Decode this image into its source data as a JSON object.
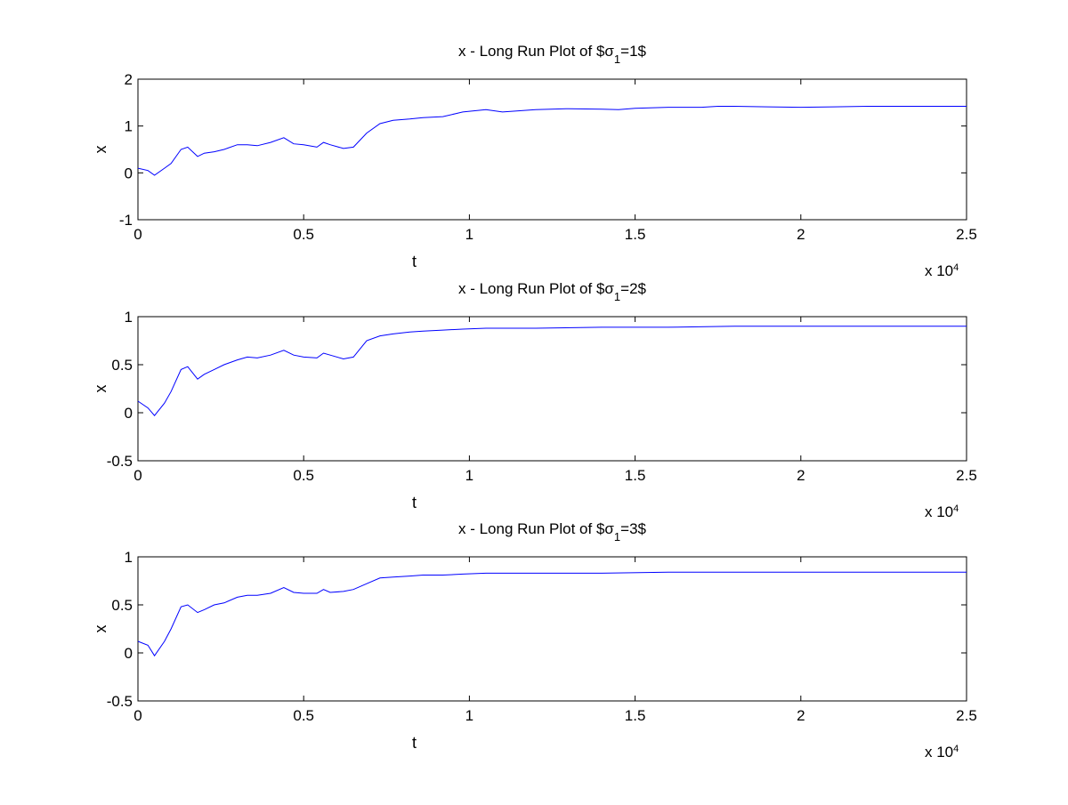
{
  "figure": {
    "background": "#ffffff",
    "line_color": "#0000ff"
  },
  "chart_data": [
    {
      "type": "line",
      "title_prefix": "x - Long Run Plot of $σ",
      "title_subscript": "1",
      "title_suffix": "=1$",
      "xlabel": "t",
      "ylabel": "x",
      "xlim": [
        0,
        25000
      ],
      "ylim": [
        -1,
        2
      ],
      "xticks": [
        0,
        5000,
        10000,
        15000,
        20000,
        25000
      ],
      "xtick_labels": [
        "0",
        "0.5",
        "1",
        "1.5",
        "2",
        "2.5"
      ],
      "yticks": [
        -1,
        0,
        1,
        2
      ],
      "ytick_labels": [
        "-1",
        "0",
        "1",
        "2"
      ],
      "x_multiplier_base": "x 10",
      "x_multiplier_exp": "4",
      "grid": false,
      "series": [
        {
          "color": "#0000ff",
          "x": [
            0,
            300,
            500,
            800,
            1000,
            1300,
            1500,
            1800,
            2000,
            2300,
            2600,
            3000,
            3300,
            3600,
            4000,
            4400,
            4700,
            5000,
            5400,
            5600,
            5800,
            6200,
            6500,
            6900,
            7300,
            7700,
            8200,
            8600,
            9200,
            9800,
            10500,
            11000,
            12000,
            13000,
            14000,
            14500,
            15000,
            16000,
            17000,
            17500,
            18000,
            19000,
            20000,
            21000,
            22000,
            23000,
            24000,
            25000
          ],
          "y": [
            0.1,
            0.05,
            -0.05,
            0.1,
            0.2,
            0.5,
            0.55,
            0.35,
            0.42,
            0.45,
            0.5,
            0.6,
            0.6,
            0.58,
            0.65,
            0.75,
            0.62,
            0.6,
            0.55,
            0.65,
            0.6,
            0.52,
            0.55,
            0.85,
            1.05,
            1.12,
            1.15,
            1.18,
            1.2,
            1.3,
            1.35,
            1.3,
            1.35,
            1.37,
            1.36,
            1.35,
            1.38,
            1.4,
            1.4,
            1.42,
            1.42,
            1.41,
            1.4,
            1.41,
            1.42,
            1.42,
            1.42,
            1.42
          ]
        }
      ]
    },
    {
      "type": "line",
      "title_prefix": "x - Long Run Plot of $σ",
      "title_subscript": "1",
      "title_suffix": "=2$",
      "xlabel": "t",
      "ylabel": "x",
      "xlim": [
        0,
        25000
      ],
      "ylim": [
        -0.5,
        1
      ],
      "xticks": [
        0,
        5000,
        10000,
        15000,
        20000,
        25000
      ],
      "xtick_labels": [
        "0",
        "0.5",
        "1",
        "1.5",
        "2",
        "2.5"
      ],
      "yticks": [
        -0.5,
        0,
        0.5,
        1
      ],
      "ytick_labels": [
        "-0.5",
        "0",
        "0.5",
        "1"
      ],
      "x_multiplier_base": "x 10",
      "x_multiplier_exp": "4",
      "grid": false,
      "series": [
        {
          "color": "#0000ff",
          "x": [
            0,
            300,
            500,
            800,
            1000,
            1300,
            1500,
            1800,
            2000,
            2300,
            2600,
            3000,
            3300,
            3600,
            4000,
            4400,
            4700,
            5000,
            5400,
            5600,
            5800,
            6200,
            6500,
            6900,
            7300,
            7700,
            8200,
            8600,
            9200,
            9800,
            10500,
            12000,
            14000,
            16000,
            18000,
            20000,
            22000,
            25000
          ],
          "y": [
            0.12,
            0.05,
            -0.03,
            0.1,
            0.22,
            0.45,
            0.48,
            0.35,
            0.4,
            0.45,
            0.5,
            0.55,
            0.58,
            0.57,
            0.6,
            0.65,
            0.6,
            0.58,
            0.57,
            0.62,
            0.6,
            0.56,
            0.58,
            0.75,
            0.8,
            0.82,
            0.84,
            0.85,
            0.86,
            0.87,
            0.88,
            0.88,
            0.89,
            0.89,
            0.9,
            0.9,
            0.9,
            0.9
          ]
        }
      ]
    },
    {
      "type": "line",
      "title_prefix": "x - Long Run Plot of $σ",
      "title_subscript": "1",
      "title_suffix": "=3$",
      "xlabel": "t",
      "ylabel": "x",
      "xlim": [
        0,
        25000
      ],
      "ylim": [
        -0.5,
        1
      ],
      "xticks": [
        0,
        5000,
        10000,
        15000,
        20000,
        25000
      ],
      "xtick_labels": [
        "0",
        "0.5",
        "1",
        "1.5",
        "2",
        "2.5"
      ],
      "yticks": [
        -0.5,
        0,
        0.5,
        1
      ],
      "ytick_labels": [
        "-0.5",
        "0",
        "0.5",
        "1"
      ],
      "x_multiplier_base": "x 10",
      "x_multiplier_exp": "4",
      "grid": false,
      "series": [
        {
          "color": "#0000ff",
          "x": [
            0,
            300,
            500,
            800,
            1000,
            1300,
            1500,
            1800,
            2000,
            2300,
            2600,
            3000,
            3300,
            3600,
            4000,
            4400,
            4700,
            5000,
            5400,
            5600,
            5800,
            6200,
            6500,
            6900,
            7300,
            7700,
            8200,
            8600,
            9200,
            9800,
            10500,
            12000,
            14000,
            16000,
            18000,
            20000,
            22000,
            25000
          ],
          "y": [
            0.12,
            0.08,
            -0.03,
            0.12,
            0.25,
            0.48,
            0.5,
            0.42,
            0.45,
            0.5,
            0.52,
            0.58,
            0.6,
            0.6,
            0.62,
            0.68,
            0.63,
            0.62,
            0.62,
            0.66,
            0.63,
            0.64,
            0.66,
            0.72,
            0.78,
            0.79,
            0.8,
            0.81,
            0.81,
            0.82,
            0.83,
            0.83,
            0.83,
            0.84,
            0.84,
            0.84,
            0.84,
            0.84
          ]
        }
      ]
    }
  ]
}
